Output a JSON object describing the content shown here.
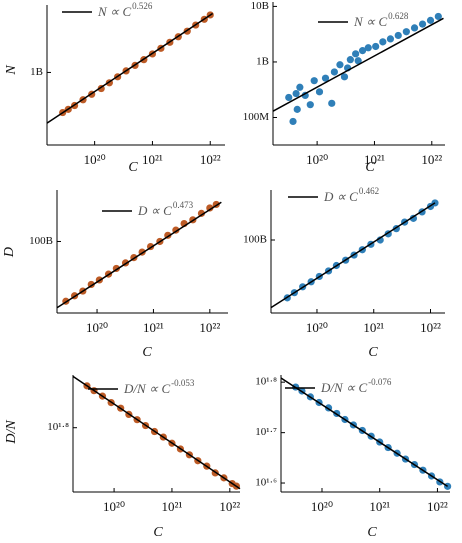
{
  "chart_data": [
    {
      "type": "scatter",
      "xlabel": "C",
      "ylabel": "N",
      "log_x": true,
      "log_y": true,
      "color": "#bd5b26",
      "xlim": [
        1.5e+19,
        1.8e+22
      ],
      "ylim": [
        100000000.0,
        8500000000.0
      ],
      "xticks": [
        {
          "value": 1e+20,
          "label": "10²⁰"
        },
        {
          "value": 1e+21,
          "label": "10²¹"
        },
        {
          "value": 1e+22,
          "label": "10²²"
        }
      ],
      "yticks": [
        {
          "value": 1000000000.0,
          "label": "1B"
        }
      ],
      "fit": {
        "name": "N ∝ C",
        "exponent": 0.526,
        "color": "#000000",
        "x": [
          1.5e+19,
          1.1e+22
        ],
        "values": [
          200000000.0,
          6500000000.0
        ]
      },
      "x": [
        2.8e+19,
        3.5e+19,
        4.5e+19,
        6.3e+19,
        8.9e+19,
        1.3e+20,
        1.8e+20,
        2.5e+20,
        3.5e+20,
        5e+20,
        7.1e+20,
        1e+21,
        1.4e+21,
        2e+21,
        2.8e+21,
        4e+21,
        5.6e+21,
        7.9e+21,
        1e+22
      ],
      "values": [
        280000000.0,
        310000000.0,
        350000000.0,
        420000000.0,
        500000000.0,
        600000000.0,
        720000000.0,
        870000000.0,
        1050000000.0,
        1250000000.0,
        1500000000.0,
        1800000000.0,
        2150000000.0,
        2600000000.0,
        3100000000.0,
        3700000000.0,
        4500000000.0,
        5400000000.0,
        6200000000.0
      ]
    },
    {
      "type": "scatter",
      "xlabel": "C",
      "log_x": true,
      "log_y": true,
      "color": "#2f7fb8",
      "xlim": [
        1.7e+19,
        1.7e+22
      ],
      "ylim": [
        32000000.0,
        12000000000.0
      ],
      "xticks": [
        {
          "value": 1e+20,
          "label": "10²⁰"
        },
        {
          "value": 1e+21,
          "label": "10²¹"
        },
        {
          "value": 1e+22,
          "label": "10²²"
        }
      ],
      "yticks": [
        {
          "value": 100000000.0,
          "label": "100M"
        },
        {
          "value": 1000000000.0,
          "label": "1B"
        },
        {
          "value": 10000000000.0,
          "label": "10B"
        }
      ],
      "fit": {
        "name": "N ∝ C",
        "exponent": 0.628,
        "color": "#000000",
        "x": [
          1.7e+19,
          1.6e+22
        ],
        "values": [
          130000000.0,
          6100000000.0
        ]
      },
      "x": [
        3.8e+19,
        3.2e+19,
        4.3e+19,
        5e+19,
        6.2e+19,
        4.5e+19,
        7.6e+19,
        8.9e+19,
        1.1e+20,
        1.4e+20,
        1.8e+20,
        2e+20,
        2.5e+20,
        3e+20,
        3.4e+20,
        3.8e+20,
        4.7e+20,
        5.2e+20,
        6.2e+20,
        7.8e+20,
        1.05e+21,
        1.4e+21,
        1.9e+21,
        2.6e+21,
        3.6e+21,
        5e+21,
        6.9e+21,
        9.5e+21,
        1.3e+22
      ],
      "values": [
        85000000.0,
        230000000.0,
        270000000.0,
        350000000.0,
        250000000.0,
        140000000.0,
        170000000.0,
        460000000.0,
        290000000.0,
        510000000.0,
        180000000.0,
        660000000.0,
        890000000.0,
        540000000.0,
        780000000.0,
        1100000000.0,
        1400000000.0,
        1050000000.0,
        1600000000.0,
        1800000000.0,
        1900000000.0,
        2300000000.0,
        2600000000.0,
        3000000000.0,
        3500000000.0,
        4100000000.0,
        4800000000.0,
        5600000000.0,
        6600000000.0
      ]
    },
    {
      "type": "scatter",
      "xlabel": "C",
      "ylabel": "D",
      "log_x": true,
      "log_y": true,
      "color": "#bd5b26",
      "xlim": [
        1.95e+19,
        2.1e+22
      ],
      "ylim": [
        12000000000.0,
        460000000000.0
      ],
      "xticks": [
        {
          "value": 1e+20,
          "label": "10²⁰"
        },
        {
          "value": 1e+21,
          "label": "10²¹"
        },
        {
          "value": 1e+22,
          "label": "10²²"
        }
      ],
      "yticks": [
        {
          "value": 100000000000.0,
          "label": "100B"
        }
      ],
      "fit": {
        "name": "D ∝ C",
        "exponent": 0.473,
        "color": "#000000",
        "x": [
          1.95e+19,
          1.6e+22
        ],
        "values": [
          14000000000.0,
          320000000000.0
        ]
      },
      "x": [
        2.8e+19,
        4e+19,
        5.6e+19,
        7.9e+19,
        1.1e+20,
        1.6e+20,
        2.2e+20,
        3.2e+20,
        4.5e+20,
        6.3e+20,
        8.9e+20,
        1.3e+21,
        1.8e+21,
        2.5e+21,
        3.5e+21,
        5e+21,
        7.1e+21,
        1e+22,
        1.3e+22
      ],
      "values": [
        17000000000.0,
        20000000000.0,
        23000000000.0,
        28000000000.0,
        32000000000.0,
        38000000000.0,
        45000000000.0,
        53000000000.0,
        62000000000.0,
        73000000000.0,
        86000000000.0,
        100000000000.0,
        120000000000.0,
        140000000000.0,
        170000000000.0,
        190000000000.0,
        230000000000.0,
        270000000000.0,
        300000000000.0
      ]
    },
    {
      "type": "scatter",
      "xlabel": "C",
      "log_x": true,
      "log_y": true,
      "color": "#2f7fb8",
      "xlim": [
        1.55e+19,
        1.8e+22
      ],
      "ylim": [
        11500000000.0,
        440000000000.0
      ],
      "xticks": [
        {
          "value": 1e+20,
          "label": "10²⁰"
        },
        {
          "value": 1e+21,
          "label": "10²¹"
        },
        {
          "value": 1e+22,
          "label": "10²²"
        }
      ],
      "yticks": [
        {
          "value": 100000000000.0,
          "label": "100B"
        }
      ],
      "fit": {
        "name": "D ∝ C",
        "exponent": 0.462,
        "color": "#000000",
        "x": [
          1.55e+19,
          1.2e+22
        ],
        "values": [
          13500000000.0,
          300000000000.0
        ]
      },
      "x": [
        3e+19,
        4e+19,
        5.6e+19,
        7.9e+19,
        1.1e+20,
        1.6e+20,
        2.2e+20,
        3.2e+20,
        4.5e+20,
        6.3e+20,
        8.9e+20,
        1.3e+21,
        1.8e+21,
        2.5e+21,
        3.5e+21,
        5e+21,
        7.1e+21,
        1e+22,
        1.2e+22
      ],
      "values": [
        18000000000.0,
        21000000000.0,
        25000000000.0,
        29000000000.0,
        34000000000.0,
        40000000000.0,
        47000000000.0,
        55000000000.0,
        64000000000.0,
        75000000000.0,
        88000000000.0,
        100000000000.0,
        120000000000.0,
        140000000000.0,
        170000000000.0,
        190000000000.0,
        230000000000.0,
        270000000000.0,
        300000000000.0
      ]
    },
    {
      "type": "scatter",
      "xlabel": "C",
      "ylabel": "D/N",
      "log_x": true,
      "log_y": true,
      "color": "#bd5b26",
      "xlim": [
        1.95e+19,
        1.5e+22
      ],
      "ylim": [
        52.3,
        73.6
      ],
      "xticks": [
        {
          "value": 1e+20,
          "label": "10²⁰"
        },
        {
          "value": 1e+21,
          "label": "10²¹"
        },
        {
          "value": 1e+22,
          "label": "10²²"
        }
      ],
      "yticks": [
        {
          "value": 63.1,
          "label": "10¹·⁸"
        }
      ],
      "fit": {
        "name": "D/N ∝ C",
        "exponent": -0.053,
        "color": "#000000",
        "x": [
          1.95e+19,
          1.5e+22
        ],
        "values": [
          73.3,
          52.8
        ]
      },
      "x": [
        3.4e+19,
        4.5e+19,
        6.3e+19,
        8.9e+19,
        1.3e+20,
        1.8e+20,
        2.5e+20,
        3.5e+20,
        5e+20,
        7.1e+20,
        1e+21,
        1.4e+21,
        2e+21,
        2.8e+21,
        4e+21,
        5.6e+21,
        7.9e+21,
        1.1e+22,
        1.3e+22
      ],
      "values": [
        71.3,
        70.3,
        69.2,
        67.9,
        66.8,
        65.6,
        64.6,
        63.5,
        62.4,
        61.4,
        60.3,
        59.3,
        58.3,
        57.3,
        56.4,
        55.3,
        54.5,
        53.6,
        53.2
      ]
    },
    {
      "type": "scatter",
      "xlabel": "C",
      "log_x": true,
      "log_y": true,
      "color": "#2f7fb8",
      "xlim": [
        1.95e+19,
        1.65e+22
      ],
      "ylim": [
        38.2,
        65.2
      ],
      "xticks": [
        {
          "value": 1e+20,
          "label": "10²⁰"
        },
        {
          "value": 1e+21,
          "label": "10²¹"
        },
        {
          "value": 1e+22,
          "label": "10²²"
        }
      ],
      "yticks": [
        {
          "value": 63.1,
          "label": "10¹·⁸"
        },
        {
          "value": 50.1,
          "label": "10¹·⁷"
        },
        {
          "value": 39.8,
          "label": "10¹·⁶"
        }
      ],
      "fit": {
        "name": "D/N ∝ C",
        "exponent": -0.076,
        "color": "#000000",
        "x": [
          1.95e+19,
          1.5e+22
        ],
        "values": [
          64.3,
          39.2
        ]
      },
      "x": [
        3.5e+19,
        4.5e+19,
        6.3e+19,
        8.9e+19,
        1.3e+20,
        1.8e+20,
        2.5e+20,
        3.5e+20,
        5e+20,
        7.1e+20,
        1e+21,
        1.4e+21,
        2e+21,
        2.8e+21,
        4e+21,
        5.6e+21,
        7.9e+21,
        1.1e+22,
        1.5e+22
      ],
      "values": [
        61.7,
        60.6,
        59.0,
        57.5,
        56.1,
        54.7,
        53.2,
        51.9,
        50.6,
        49.3,
        48.0,
        46.8,
        45.6,
        44.4,
        43.3,
        42.2,
        41.1,
        40.0,
        39.2
      ]
    }
  ]
}
